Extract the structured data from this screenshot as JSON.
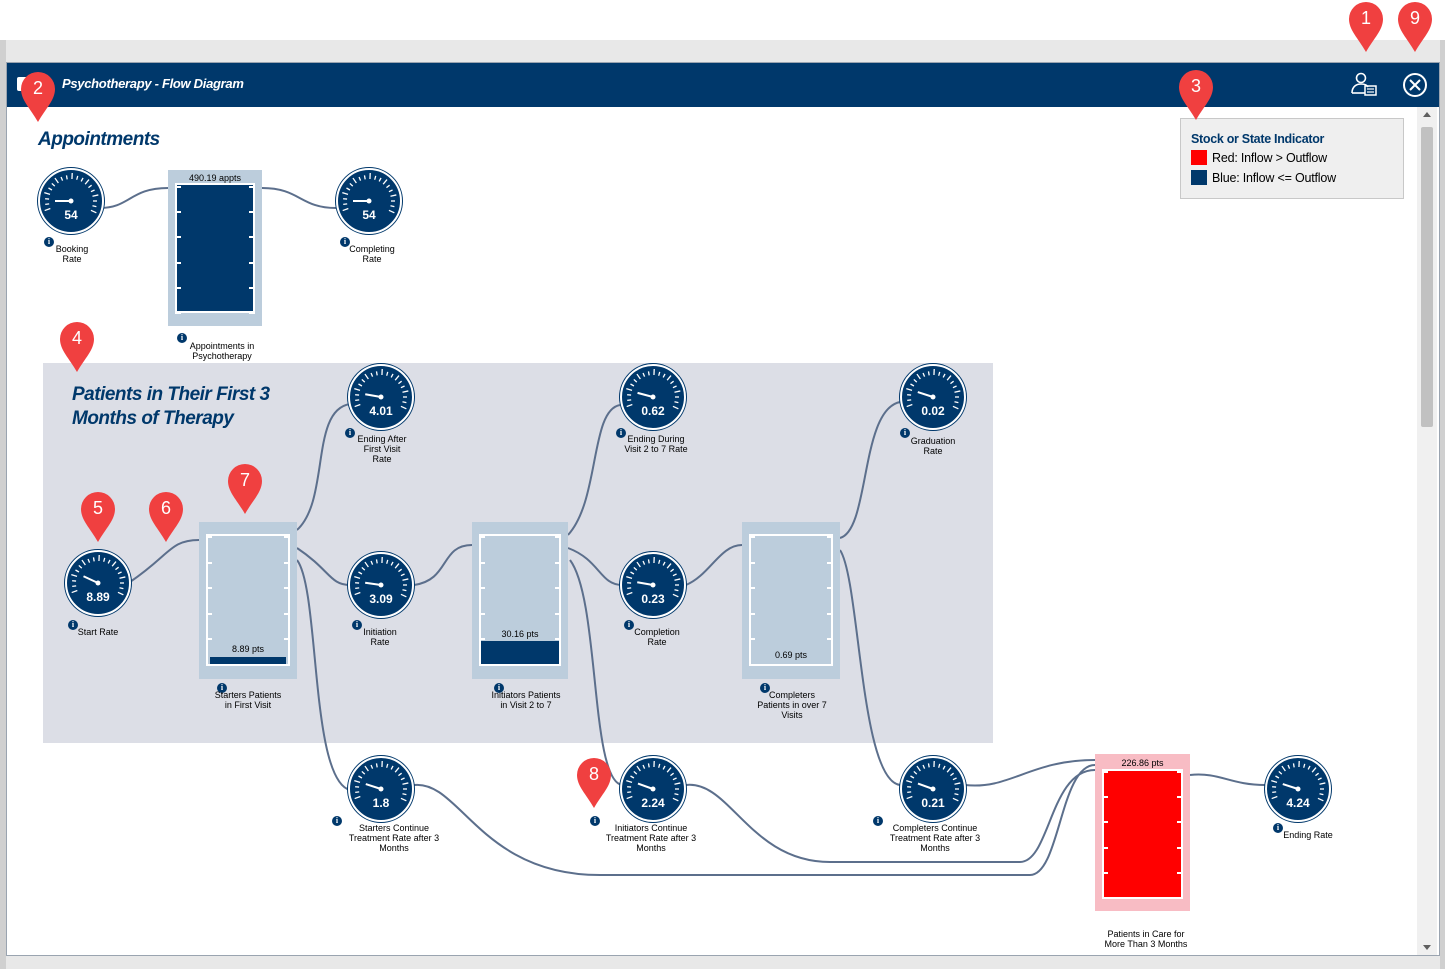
{
  "window": {
    "title": "Psychotherapy - Flow Diagram",
    "user_icon": "user-card-icon",
    "close_icon": "close-circle-icon"
  },
  "colors": {
    "titlebar": "#00386b",
    "navy": "#00386b",
    "stock_light": "#bccddc",
    "red": "#ff0000",
    "red_light": "#f8bcc4",
    "panel": "#dcdee6",
    "pin_red": "#f04040"
  },
  "legend": {
    "title": "Stock or State Indicator",
    "red_label": "Red: Inflow > Outflow",
    "blue_label": "Blue: Inflow <= Outflow"
  },
  "sections": {
    "appointments": "Appointments",
    "first3": "Patients in Their First 3 Months of Therapy"
  },
  "gauges": {
    "booking": {
      "value": "54",
      "label": "Booking Rate"
    },
    "completing": {
      "value": "54",
      "label": "Completing Rate"
    },
    "start": {
      "value": "8.89",
      "label": "Start Rate"
    },
    "ending_first": {
      "value": "4.01",
      "label": "Ending After First Visit Rate"
    },
    "initiation": {
      "value": "3.09",
      "label": "Initiation Rate"
    },
    "ending_2to7": {
      "value": "0.62",
      "label": "Ending During Visit 2 to 7 Rate"
    },
    "completion": {
      "value": "0.23",
      "label": "Completion Rate"
    },
    "graduation": {
      "value": "0.02",
      "label": "Graduation Rate"
    },
    "starters_cont": {
      "value": "1.8",
      "label": "Starters Continue Treatment Rate after 3 Months"
    },
    "initiators_cont": {
      "value": "2.24",
      "label": "Initiators Continue Treatment Rate after 3 Months"
    },
    "completers_cont": {
      "value": "0.21",
      "label": "Completers Continue Treatment Rate after 3 Months"
    },
    "ending": {
      "value": "4.24",
      "label": "Ending Rate"
    }
  },
  "stocks": {
    "appointments": {
      "value": "490.19 appts",
      "label": "Appointments in Psychotherapy",
      "state": "blue"
    },
    "starters": {
      "value": "8.89 pts",
      "label": "Starters Patients in First Visit",
      "state": "blue"
    },
    "initiators": {
      "value": "30.16 pts",
      "label": "Initiators Patients in Visit 2 to 7",
      "state": "blue"
    },
    "completers": {
      "value": "0.69 pts",
      "label": "Completers Patients in over 7 Visits",
      "state": "blue"
    },
    "long_care": {
      "value": "226.86 pts",
      "label": "Patients in Care for More Than 3 Months",
      "state": "red"
    }
  },
  "callouts": [
    "1",
    "2",
    "3",
    "4",
    "5",
    "6",
    "7",
    "8",
    "9"
  ]
}
